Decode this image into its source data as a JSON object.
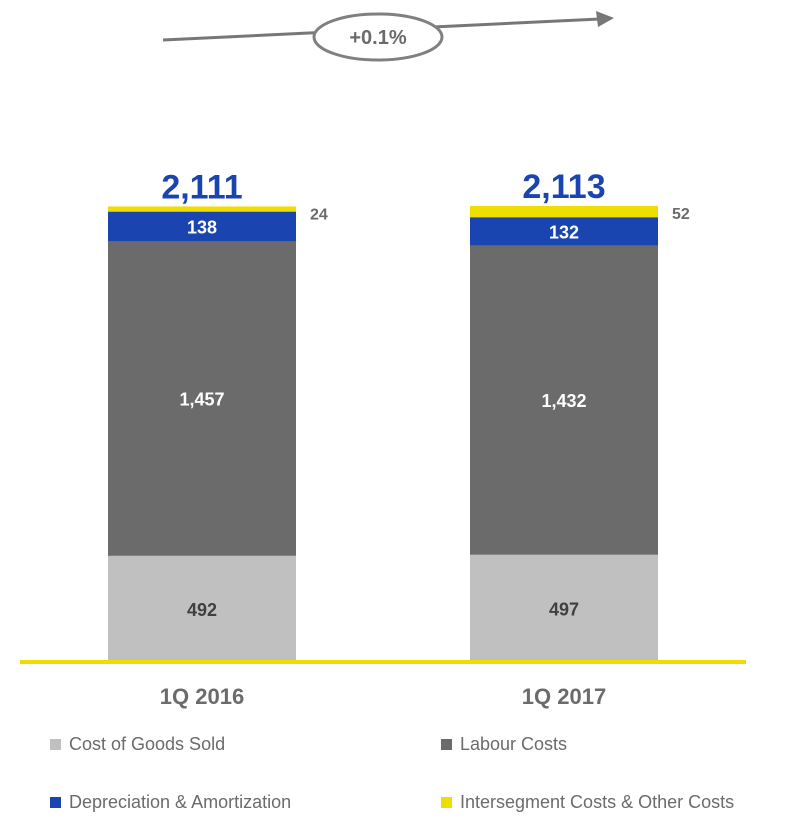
{
  "growth_label": "+0.1%",
  "chart_data": {
    "type": "bar",
    "stacked": true,
    "categories": [
      "1Q 2016",
      "1Q 2017"
    ],
    "series": [
      {
        "name": "Cost of Goods Sold",
        "color": "#c0c0c0",
        "label_color": "#404040",
        "values": [
          492,
          497
        ]
      },
      {
        "name": "Labour Costs",
        "color": "#6b6b6b",
        "label_color": "#ffffff",
        "values": [
          1457,
          1432
        ]
      },
      {
        "name": "Depreciation & Amortization",
        "color": "#1a45b0",
        "label_color": "#ffffff",
        "values": [
          138,
          132
        ]
      },
      {
        "name": "Intersegment Costs & Other Costs",
        "color": "#f0dd00",
        "label_color": "#6b6b6b",
        "values": [
          24,
          52
        ]
      }
    ],
    "totals": [
      "2,111",
      "2,113"
    ],
    "value_labels": [
      [
        "492",
        "1,457",
        "138",
        "24"
      ],
      [
        "497",
        "1,432",
        "132",
        "52"
      ]
    ],
    "legend_position": "bottom",
    "grid": false
  },
  "legend": [
    {
      "name": "Cost of Goods Sold",
      "color": "#c0c0c0"
    },
    {
      "name": "Labour Costs",
      "color": "#6b6b6b"
    },
    {
      "name": "Depreciation & Amortization",
      "color": "#1a45b0"
    },
    {
      "name": "Intersegment Costs & Other Costs",
      "color": "#f0dd00"
    }
  ]
}
